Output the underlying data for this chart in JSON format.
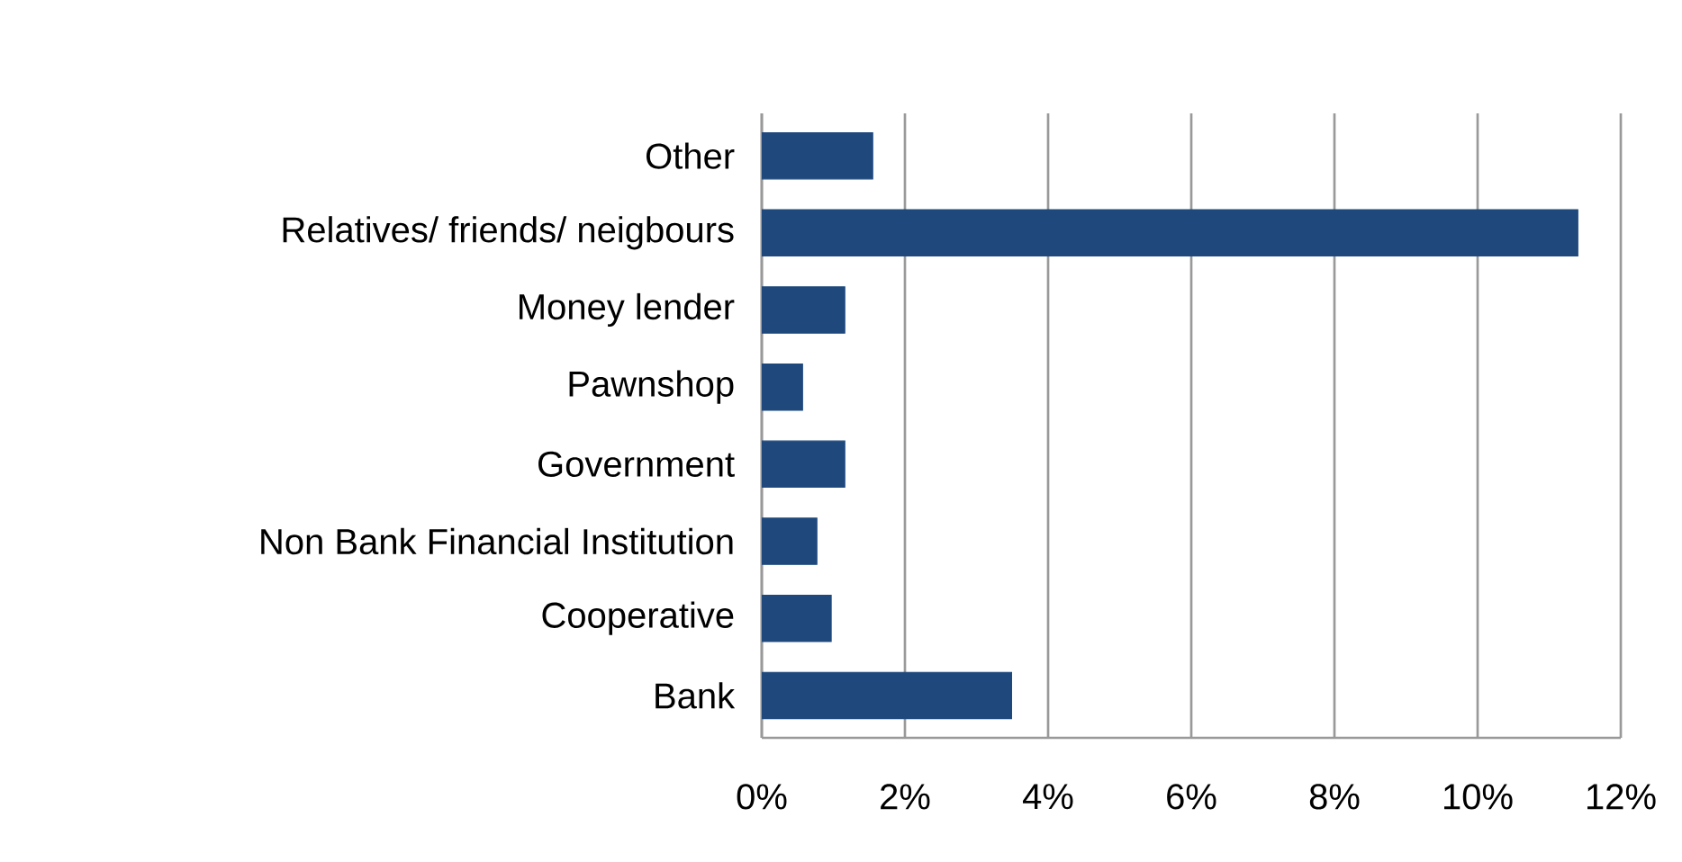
{
  "chart_data": {
    "type": "bar",
    "orientation": "horizontal",
    "categories": [
      "Other",
      "Relatives/ friends/ neigbours",
      "Money lender",
      "Pawnshop",
      "Government",
      "Non Bank Financial Institution",
      "Cooperative",
      "Bank"
    ],
    "values": [
      1.55,
      11.4,
      1.16,
      0.57,
      1.16,
      0.77,
      0.97,
      3.49
    ],
    "color": "#1f497d",
    "xlim": [
      0,
      12
    ],
    "xticks": [
      {
        "value": 0,
        "label": "0%"
      },
      {
        "value": 2,
        "label": "2%"
      },
      {
        "value": 4,
        "label": "4%"
      },
      {
        "value": 6,
        "label": "6%"
      },
      {
        "value": 8,
        "label": "8%"
      },
      {
        "value": 10,
        "label": "10%"
      },
      {
        "value": 12,
        "label": "12%"
      }
    ],
    "grid": "x"
  }
}
